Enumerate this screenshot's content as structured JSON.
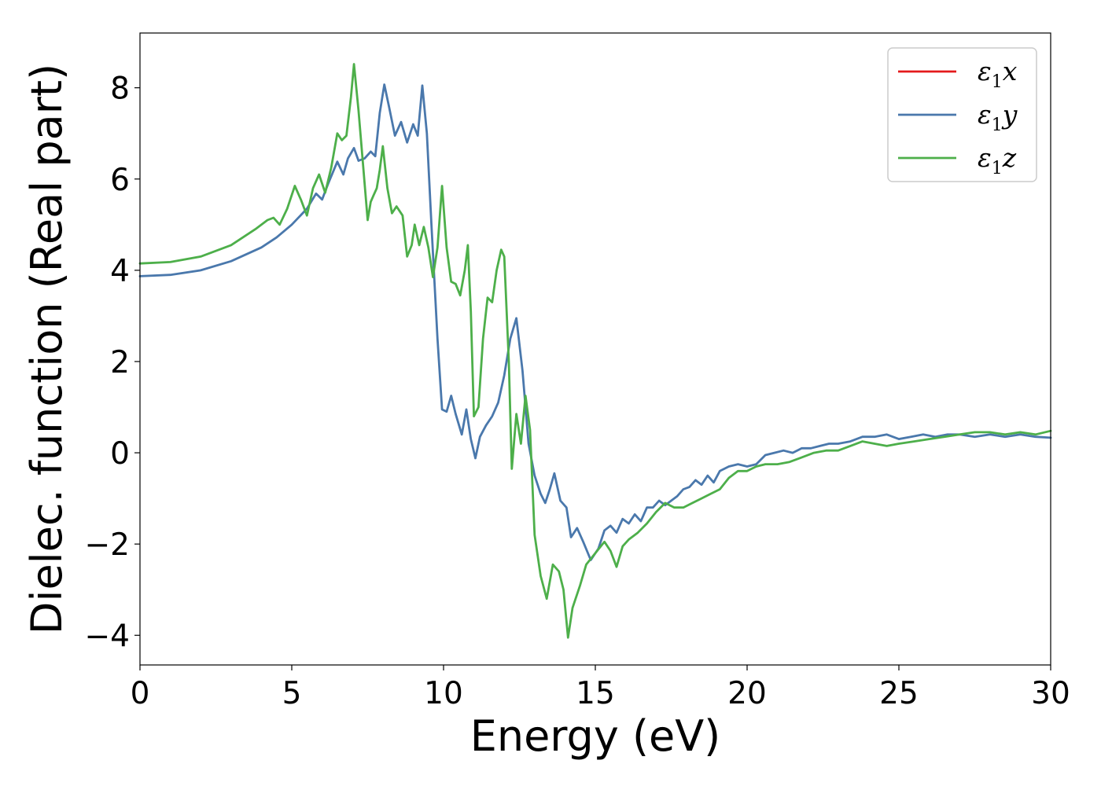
{
  "chart_data": {
    "type": "line",
    "title": "",
    "xlabel": "Energy (eV)",
    "ylabel": "Dielec. function (Real part)",
    "xlim": [
      0,
      30
    ],
    "ylim": [
      -4.65,
      9.2
    ],
    "xticks": [
      0,
      5,
      10,
      15,
      20,
      25,
      30
    ],
    "yticks": [
      -4,
      -2,
      0,
      2,
      4,
      6,
      8
    ],
    "grid": false,
    "legend_position": "top-right",
    "series": [
      {
        "key": "x",
        "name": "ε1x",
        "name_main": "ε",
        "name_sub": "1",
        "name_tail": "x",
        "color": "#e41a1c",
        "points": []
      },
      {
        "key": "y",
        "name": "ε1y",
        "name_main": "ε",
        "name_sub": "1",
        "name_tail": "y",
        "color": "#4a78ac",
        "points": [
          [
            0,
            3.87
          ],
          [
            1,
            3.9
          ],
          [
            2,
            4.0
          ],
          [
            3,
            4.2
          ],
          [
            4,
            4.5
          ],
          [
            4.5,
            4.72
          ],
          [
            5,
            5.0
          ],
          [
            5.5,
            5.35
          ],
          [
            5.8,
            5.68
          ],
          [
            6.0,
            5.55
          ],
          [
            6.2,
            5.9
          ],
          [
            6.5,
            6.38
          ],
          [
            6.7,
            6.1
          ],
          [
            6.85,
            6.45
          ],
          [
            7.05,
            6.68
          ],
          [
            7.2,
            6.4
          ],
          [
            7.4,
            6.45
          ],
          [
            7.6,
            6.6
          ],
          [
            7.75,
            6.5
          ],
          [
            7.9,
            7.45
          ],
          [
            8.05,
            8.07
          ],
          [
            8.2,
            7.6
          ],
          [
            8.4,
            6.95
          ],
          [
            8.6,
            7.25
          ],
          [
            8.8,
            6.8
          ],
          [
            9.0,
            7.2
          ],
          [
            9.15,
            6.95
          ],
          [
            9.3,
            8.05
          ],
          [
            9.45,
            7.0
          ],
          [
            9.6,
            5.0
          ],
          [
            9.8,
            2.5
          ],
          [
            9.95,
            0.95
          ],
          [
            10.1,
            0.9
          ],
          [
            10.25,
            1.25
          ],
          [
            10.4,
            0.85
          ],
          [
            10.6,
            0.4
          ],
          [
            10.75,
            0.95
          ],
          [
            10.9,
            0.3
          ],
          [
            11.05,
            -0.12
          ],
          [
            11.2,
            0.35
          ],
          [
            11.4,
            0.6
          ],
          [
            11.6,
            0.8
          ],
          [
            11.8,
            1.1
          ],
          [
            12.0,
            1.7
          ],
          [
            12.2,
            2.5
          ],
          [
            12.4,
            2.95
          ],
          [
            12.6,
            1.8
          ],
          [
            12.8,
            0.2
          ],
          [
            13.0,
            -0.5
          ],
          [
            13.2,
            -0.9
          ],
          [
            13.35,
            -1.1
          ],
          [
            13.5,
            -0.8
          ],
          [
            13.65,
            -0.45
          ],
          [
            13.85,
            -1.05
          ],
          [
            14.05,
            -1.2
          ],
          [
            14.2,
            -1.85
          ],
          [
            14.4,
            -1.65
          ],
          [
            14.6,
            -1.95
          ],
          [
            14.85,
            -2.35
          ],
          [
            15.1,
            -2.1
          ],
          [
            15.3,
            -1.7
          ],
          [
            15.5,
            -1.6
          ],
          [
            15.7,
            -1.75
          ],
          [
            15.9,
            -1.45
          ],
          [
            16.1,
            -1.55
          ],
          [
            16.3,
            -1.35
          ],
          [
            16.5,
            -1.5
          ],
          [
            16.7,
            -1.2
          ],
          [
            16.9,
            -1.2
          ],
          [
            17.1,
            -1.05
          ],
          [
            17.3,
            -1.15
          ],
          [
            17.5,
            -1.05
          ],
          [
            17.7,
            -0.95
          ],
          [
            17.9,
            -0.8
          ],
          [
            18.1,
            -0.75
          ],
          [
            18.3,
            -0.6
          ],
          [
            18.5,
            -0.7
          ],
          [
            18.7,
            -0.5
          ],
          [
            18.9,
            -0.65
          ],
          [
            19.1,
            -0.4
          ],
          [
            19.4,
            -0.3
          ],
          [
            19.7,
            -0.25
          ],
          [
            20.0,
            -0.3
          ],
          [
            20.3,
            -0.25
          ],
          [
            20.6,
            -0.05
          ],
          [
            20.9,
            0.0
          ],
          [
            21.2,
            0.05
          ],
          [
            21.5,
            0.0
          ],
          [
            21.8,
            0.1
          ],
          [
            22.1,
            0.1
          ],
          [
            22.4,
            0.15
          ],
          [
            22.7,
            0.2
          ],
          [
            23.0,
            0.2
          ],
          [
            23.4,
            0.25
          ],
          [
            23.8,
            0.35
          ],
          [
            24.2,
            0.35
          ],
          [
            24.6,
            0.4
          ],
          [
            25.0,
            0.3
          ],
          [
            25.4,
            0.35
          ],
          [
            25.8,
            0.4
          ],
          [
            26.2,
            0.35
          ],
          [
            26.6,
            0.4
          ],
          [
            27.0,
            0.4
          ],
          [
            27.5,
            0.35
          ],
          [
            28.0,
            0.4
          ],
          [
            28.5,
            0.35
          ],
          [
            29.0,
            0.4
          ],
          [
            29.5,
            0.35
          ],
          [
            30.0,
            0.33
          ]
        ]
      },
      {
        "key": "z",
        "name": "ε1z",
        "name_main": "ε",
        "name_sub": "1",
        "name_tail": "z",
        "color": "#4daf4a",
        "points": [
          [
            0,
            4.15
          ],
          [
            1,
            4.18
          ],
          [
            2,
            4.3
          ],
          [
            3,
            4.55
          ],
          [
            3.8,
            4.9
          ],
          [
            4.2,
            5.1
          ],
          [
            4.4,
            5.15
          ],
          [
            4.6,
            5.0
          ],
          [
            4.85,
            5.35
          ],
          [
            5.1,
            5.85
          ],
          [
            5.3,
            5.55
          ],
          [
            5.5,
            5.2
          ],
          [
            5.7,
            5.8
          ],
          [
            5.9,
            6.1
          ],
          [
            6.1,
            5.7
          ],
          [
            6.3,
            6.25
          ],
          [
            6.5,
            7.0
          ],
          [
            6.65,
            6.85
          ],
          [
            6.8,
            6.95
          ],
          [
            6.95,
            7.8
          ],
          [
            7.05,
            8.52
          ],
          [
            7.2,
            7.5
          ],
          [
            7.35,
            6.3
          ],
          [
            7.5,
            5.1
          ],
          [
            7.6,
            5.5
          ],
          [
            7.7,
            5.65
          ],
          [
            7.8,
            5.8
          ],
          [
            7.9,
            6.2
          ],
          [
            8.0,
            6.72
          ],
          [
            8.15,
            5.8
          ],
          [
            8.3,
            5.25
          ],
          [
            8.45,
            5.4
          ],
          [
            8.65,
            5.2
          ],
          [
            8.8,
            4.3
          ],
          [
            8.95,
            4.55
          ],
          [
            9.05,
            5.0
          ],
          [
            9.2,
            4.55
          ],
          [
            9.35,
            4.95
          ],
          [
            9.5,
            4.5
          ],
          [
            9.65,
            3.85
          ],
          [
            9.8,
            4.5
          ],
          [
            9.95,
            5.85
          ],
          [
            10.1,
            4.5
          ],
          [
            10.25,
            3.75
          ],
          [
            10.4,
            3.7
          ],
          [
            10.55,
            3.45
          ],
          [
            10.7,
            4.0
          ],
          [
            10.8,
            4.55
          ],
          [
            10.9,
            3.1
          ],
          [
            11.0,
            0.8
          ],
          [
            11.15,
            1.0
          ],
          [
            11.3,
            2.5
          ],
          [
            11.45,
            3.4
          ],
          [
            11.6,
            3.3
          ],
          [
            11.75,
            4.0
          ],
          [
            11.9,
            4.45
          ],
          [
            12.0,
            4.3
          ],
          [
            12.15,
            2.0
          ],
          [
            12.25,
            -0.35
          ],
          [
            12.4,
            0.85
          ],
          [
            12.55,
            0.2
          ],
          [
            12.7,
            1.25
          ],
          [
            12.85,
            0.5
          ],
          [
            13.0,
            -1.8
          ],
          [
            13.2,
            -2.7
          ],
          [
            13.4,
            -3.2
          ],
          [
            13.6,
            -2.45
          ],
          [
            13.8,
            -2.6
          ],
          [
            13.95,
            -3.0
          ],
          [
            14.1,
            -4.05
          ],
          [
            14.25,
            -3.4
          ],
          [
            14.5,
            -2.9
          ],
          [
            14.7,
            -2.45
          ],
          [
            15.0,
            -2.2
          ],
          [
            15.3,
            -1.95
          ],
          [
            15.5,
            -2.15
          ],
          [
            15.7,
            -2.5
          ],
          [
            15.9,
            -2.05
          ],
          [
            16.1,
            -1.9
          ],
          [
            16.4,
            -1.75
          ],
          [
            16.7,
            -1.55
          ],
          [
            17.0,
            -1.3
          ],
          [
            17.3,
            -1.1
          ],
          [
            17.6,
            -1.2
          ],
          [
            17.9,
            -1.2
          ],
          [
            18.2,
            -1.1
          ],
          [
            18.5,
            -1.0
          ],
          [
            18.8,
            -0.9
          ],
          [
            19.1,
            -0.8
          ],
          [
            19.4,
            -0.55
          ],
          [
            19.7,
            -0.4
          ],
          [
            20.0,
            -0.4
          ],
          [
            20.3,
            -0.3
          ],
          [
            20.6,
            -0.25
          ],
          [
            21.0,
            -0.25
          ],
          [
            21.4,
            -0.2
          ],
          [
            21.8,
            -0.1
          ],
          [
            22.2,
            0.0
          ],
          [
            22.6,
            0.05
          ],
          [
            23.0,
            0.05
          ],
          [
            23.4,
            0.15
          ],
          [
            23.8,
            0.25
          ],
          [
            24.2,
            0.2
          ],
          [
            24.6,
            0.15
          ],
          [
            25.0,
            0.2
          ],
          [
            25.5,
            0.25
          ],
          [
            26.0,
            0.3
          ],
          [
            26.5,
            0.35
          ],
          [
            27.0,
            0.4
          ],
          [
            27.5,
            0.45
          ],
          [
            28.0,
            0.45
          ],
          [
            28.5,
            0.4
          ],
          [
            29.0,
            0.45
          ],
          [
            29.5,
            0.4
          ],
          [
            30.0,
            0.48
          ]
        ]
      }
    ]
  }
}
